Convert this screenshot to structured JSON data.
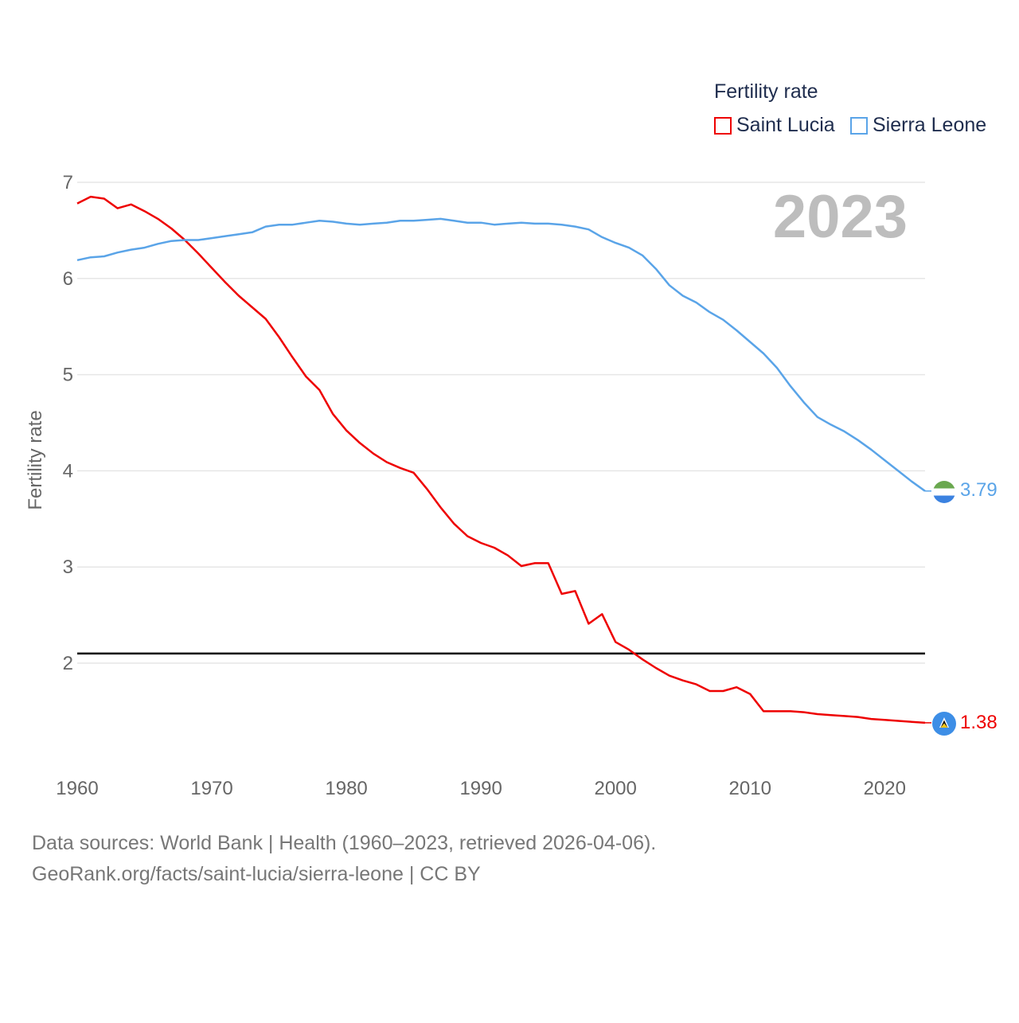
{
  "legend": {
    "title": "Fertility rate",
    "items": [
      {
        "label": "Saint Lucia",
        "color": "#ee0000"
      },
      {
        "label": "Sierra Leone",
        "color": "#5aa4e8"
      }
    ]
  },
  "year_label": "2023",
  "source": {
    "line1": "Data sources: World Bank | Health (1960–2023, retrieved 2026-04-06).",
    "line2": "GeoRank.org/facts/saint-lucia/sierra-leone | CC BY"
  },
  "chart_data": {
    "type": "line",
    "title": "Fertility rate",
    "ylabel": "Fertility rate",
    "xlabel": "",
    "xlim": [
      1960,
      2023
    ],
    "ylim": [
      1.0,
      7.0
    ],
    "x_ticks": [
      1960,
      1970,
      1980,
      1990,
      2000,
      2010,
      2020
    ],
    "y_ticks": [
      2,
      3,
      4,
      5,
      6,
      7
    ],
    "reference_line": {
      "y": 2.1,
      "color": "#000000"
    },
    "x": [
      1960,
      1961,
      1962,
      1963,
      1964,
      1965,
      1966,
      1967,
      1968,
      1969,
      1970,
      1971,
      1972,
      1973,
      1974,
      1975,
      1976,
      1977,
      1978,
      1979,
      1980,
      1981,
      1982,
      1983,
      1984,
      1985,
      1986,
      1987,
      1988,
      1989,
      1990,
      1991,
      1992,
      1993,
      1994,
      1995,
      1996,
      1997,
      1998,
      1999,
      2000,
      2001,
      2002,
      2003,
      2004,
      2005,
      2006,
      2007,
      2008,
      2009,
      2010,
      2011,
      2012,
      2013,
      2014,
      2015,
      2016,
      2017,
      2018,
      2019,
      2020,
      2021,
      2022,
      2023
    ],
    "series": [
      {
        "name": "Saint Lucia",
        "color": "#ee0000",
        "end_label": "1.38",
        "values": [
          6.78,
          6.85,
          6.83,
          6.73,
          6.77,
          6.7,
          6.62,
          6.52,
          6.4,
          6.26,
          6.11,
          5.96,
          5.82,
          5.7,
          5.58,
          5.39,
          5.18,
          4.98,
          4.84,
          4.59,
          4.42,
          4.29,
          4.18,
          4.09,
          4.03,
          3.98,
          3.81,
          3.62,
          3.45,
          3.32,
          3.25,
          3.2,
          3.12,
          3.01,
          3.04,
          3.04,
          2.72,
          2.75,
          2.41,
          2.51,
          2.22,
          2.14,
          2.04,
          1.95,
          1.87,
          1.82,
          1.78,
          1.71,
          1.71,
          1.75,
          1.68,
          1.5,
          1.5,
          1.5,
          1.49,
          1.47,
          1.46,
          1.45,
          1.44,
          1.42,
          1.41,
          1.4,
          1.39,
          1.38
        ]
      },
      {
        "name": "Sierra Leone",
        "color": "#5aa4e8",
        "end_label": "3.79",
        "values": [
          6.19,
          6.22,
          6.23,
          6.27,
          6.3,
          6.32,
          6.36,
          6.39,
          6.4,
          6.4,
          6.42,
          6.44,
          6.46,
          6.48,
          6.54,
          6.56,
          6.56,
          6.58,
          6.6,
          6.59,
          6.57,
          6.56,
          6.57,
          6.58,
          6.6,
          6.6,
          6.61,
          6.62,
          6.6,
          6.58,
          6.58,
          6.56,
          6.57,
          6.58,
          6.57,
          6.57,
          6.56,
          6.54,
          6.51,
          6.43,
          6.37,
          6.32,
          6.24,
          6.1,
          5.93,
          5.82,
          5.75,
          5.65,
          5.57,
          5.46,
          5.34,
          5.22,
          5.07,
          4.88,
          4.71,
          4.56,
          4.48,
          4.41,
          4.32,
          4.22,
          4.11,
          4.0,
          3.89,
          3.79
        ]
      }
    ]
  }
}
